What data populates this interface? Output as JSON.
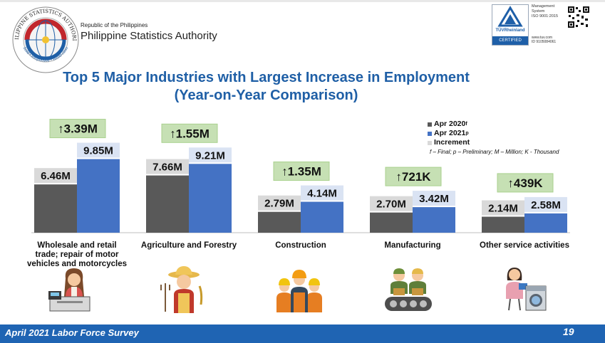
{
  "header": {
    "org_small": "Republic of the Philippines",
    "org_name": "Philippine Statistics Authority",
    "seal_text_top": "PHILIPPINE STATISTICS AUTHORITY",
    "seal_text_bottom": "Solid • Responsive • World-class",
    "cert": {
      "brand": "TÜVRheinland",
      "badge": "CERTIFIED",
      "line1": "Management",
      "line2": "System",
      "line3": "ISO 9001:2015",
      "line4": "www.tuv.com",
      "line5": "ID 9105084061"
    }
  },
  "title_line1": "Top 5 Major Industries with Largest Increase in Employment",
  "title_line2": "(Year-on-Year Comparison)",
  "legend": {
    "apr2020": "Apr 2020",
    "apr2020_sup": "f",
    "apr2021": "Apr 2021",
    "apr2021_sup": "p",
    "increment": "Increment"
  },
  "footnote": "f – Final; p – Preliminary; M – Million; K - Thousand",
  "footer": {
    "label": "April 2021 Labor Force Survey",
    "page": "19"
  },
  "colors": {
    "apr2020": "#595959",
    "apr2021": "#4472c4",
    "increment_bg": "#c6e0b4",
    "title": "#1f5fa6",
    "footer": "#1f64b3"
  },
  "chart_data": {
    "type": "bar",
    "categories": [
      "Wholesale and retail trade; repair of motor vehicles and motorcycles",
      "Agriculture and Forestry",
      "Construction",
      "Manufacturing",
      "Other service activities"
    ],
    "category_lines": [
      [
        "Wholesale and retail",
        "trade; repair of motor",
        "vehicles and motorcycles"
      ],
      [
        "Agriculture and Forestry"
      ],
      [
        "Construction"
      ],
      [
        "Manufacturing"
      ],
      [
        "Other service activities"
      ]
    ],
    "series": [
      {
        "name": "Apr 2020",
        "values": [
          6.46,
          7.66,
          2.79,
          2.7,
          2.14
        ],
        "labels": [
          "6.46M",
          "7.66M",
          "2.79M",
          "2.70M",
          "2.14M"
        ]
      },
      {
        "name": "Apr 2021",
        "values": [
          9.85,
          9.21,
          4.14,
          3.42,
          2.58
        ],
        "labels": [
          "9.85M",
          "9.21M",
          "4.14M",
          "3.42M",
          "2.58M"
        ]
      }
    ],
    "increments": [
      "↑3.39M",
      "↑1.55M",
      "↑1.35M",
      "↑721K",
      "↑439K"
    ],
    "icons": [
      "cashier-icon",
      "farmer-icon",
      "construction-workers-icon",
      "factory-workers-icon",
      "laundry-worker-icon"
    ],
    "units": "M",
    "ylim": [
      0,
      10
    ]
  }
}
